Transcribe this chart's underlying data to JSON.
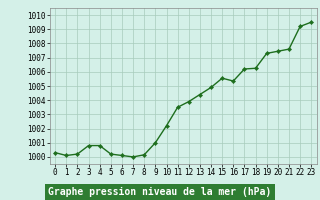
{
  "x": [
    0,
    1,
    2,
    3,
    4,
    5,
    6,
    7,
    8,
    9,
    10,
    11,
    12,
    13,
    14,
    15,
    16,
    17,
    18,
    19,
    20,
    21,
    22,
    23
  ],
  "y": [
    1000.3,
    1000.1,
    1000.2,
    1000.8,
    1000.8,
    1000.2,
    1000.1,
    1000.0,
    1000.15,
    1001.0,
    1002.2,
    1003.5,
    1003.9,
    1004.4,
    1004.9,
    1005.55,
    1005.35,
    1006.2,
    1006.25,
    1007.3,
    1007.45,
    1007.6,
    1009.2,
    1009.5
  ],
  "line_color": "#1e6e1e",
  "marker_color": "#1e6e1e",
  "bg_color": "#d4f0e8",
  "plot_bg_color": "#d4f0e8",
  "grid_color": "#a8ccbc",
  "label_bg_color": "#2e7d32",
  "label_text_color": "#ffffff",
  "xlabel": "Graphe pression niveau de la mer (hPa)",
  "ylim": [
    999.5,
    1010.5
  ],
  "xlim": [
    -0.5,
    23.5
  ],
  "ytick_labels": [
    "1000",
    "1001",
    "1002",
    "1003",
    "1004",
    "1005",
    "1006",
    "1007",
    "1008",
    "1009",
    "1010"
  ],
  "ytick_values": [
    1000,
    1001,
    1002,
    1003,
    1004,
    1005,
    1006,
    1007,
    1008,
    1009,
    1010
  ],
  "xtick_values": [
    0,
    1,
    2,
    3,
    4,
    5,
    6,
    7,
    8,
    9,
    10,
    11,
    12,
    13,
    14,
    15,
    16,
    17,
    18,
    19,
    20,
    21,
    22,
    23
  ],
  "title_fontsize": 7.0,
  "tick_fontsize": 5.5,
  "linewidth": 1.0,
  "markersize": 2.2
}
